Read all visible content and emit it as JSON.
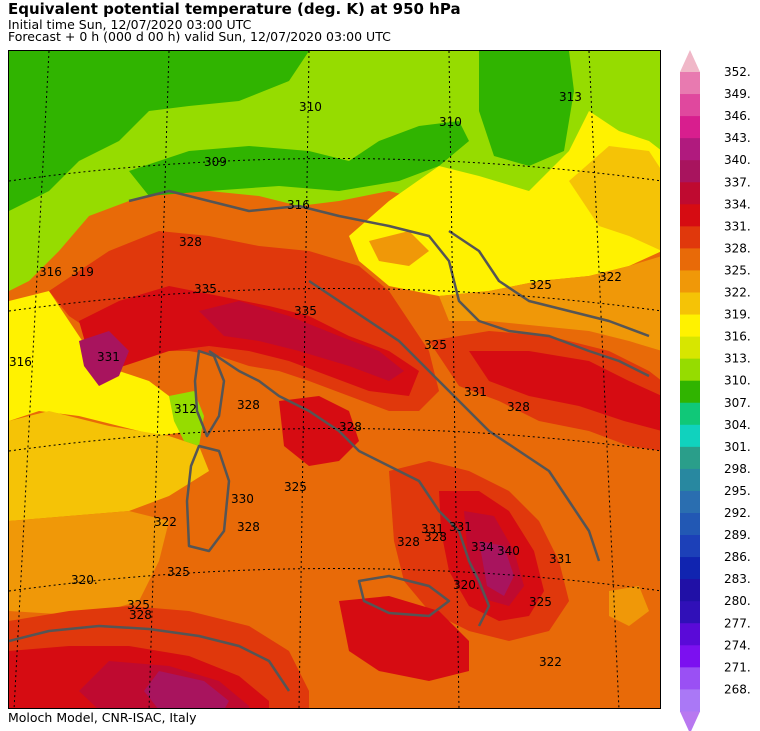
{
  "header": {
    "title": "Equivalent potential temperature (deg. K) at 950 hPa",
    "initial_time": "Initial time  Sun, 12/07/2020  03:00 UTC",
    "forecast": "Forecast  +   0 h  (000 d 00 h)  valid Sun, 12/07/2020 03:00 UTC"
  },
  "footer": {
    "credit": "Moloch Model, CNR-ISAC, Italy"
  },
  "colorbar": {
    "labels": [
      "352.",
      "349.",
      "346.",
      "343.",
      "340.",
      "337.",
      "334.",
      "331.",
      "328.",
      "325.",
      "322.",
      "319.",
      "316.",
      "313.",
      "310.",
      "307.",
      "304.",
      "301.",
      "298.",
      "295.",
      "292.",
      "289.",
      "286.",
      "283.",
      "280.",
      "277.",
      "274.",
      "271.",
      "268."
    ],
    "colors": [
      "#e87ab0",
      "#e0489e",
      "#d81e8e",
      "#b01a7e",
      "#a8145e",
      "#bf0a30",
      "#d60c12",
      "#e0380c",
      "#e86a08",
      "#f09808",
      "#f5c306",
      "#fff200",
      "#d7e600",
      "#96dc00",
      "#30b400",
      "#10c878",
      "#10d2be",
      "#2a9e8a",
      "#2888a0",
      "#2a6eb0",
      "#2258b4",
      "#1c40b8",
      "#1024b0",
      "#2010a6",
      "#3010b8",
      "#5a0ad8",
      "#7c10f0",
      "#9a50f4",
      "#aa78f6"
    ],
    "top_arrow_color": "#f0b8c8",
    "bottom_arrow_color": "#b878f0"
  },
  "contour_labels": [
    "310",
    "313",
    "310",
    "309",
    "316",
    "316",
    "316",
    "319",
    "322",
    "325",
    "328",
    "331",
    "335",
    "335",
    "325",
    "328",
    "312",
    "328",
    "328",
    "325",
    "330",
    "328",
    "322",
    "325",
    "320.",
    "325",
    "328",
    "331",
    "331",
    "334",
    "340",
    "331",
    "320.",
    "328",
    "325",
    "322",
    "328",
    "331"
  ]
}
